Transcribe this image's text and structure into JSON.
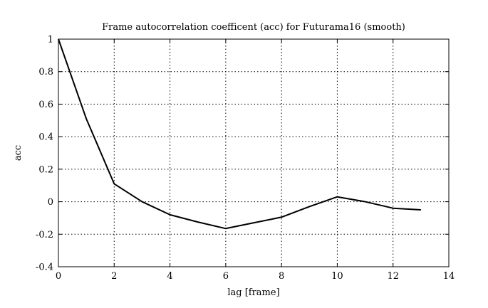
{
  "chart_data": {
    "type": "line",
    "title": "Frame autocorrelation coefficent (acc) for Futurama16 (smooth)",
    "xlabel": "lag [frame]",
    "ylabel": "acc",
    "xlim": [
      0,
      14
    ],
    "ylim": [
      -0.4,
      1
    ],
    "xticks": [
      0,
      2,
      4,
      6,
      8,
      10,
      12,
      14
    ],
    "yticks": [
      -0.4,
      -0.2,
      0,
      0.2,
      0.4,
      0.6,
      0.8,
      1
    ],
    "xtick_labels": [
      "0",
      "2",
      "4",
      "6",
      "8",
      "10",
      "12",
      "14"
    ],
    "ytick_labels": [
      "-0.4",
      "-0.2",
      "0",
      "0.2",
      "0.4",
      "0.6",
      "0.8",
      "1"
    ],
    "grid": true,
    "series": [
      {
        "x": [
          0,
          1,
          2,
          3,
          4,
          5,
          6,
          7,
          8,
          9,
          10,
          11,
          12,
          13
        ],
        "y": [
          1.0,
          0.51,
          0.11,
          0.0,
          -0.08,
          -0.125,
          -0.165,
          -0.13,
          -0.095,
          -0.03,
          0.03,
          0.0,
          -0.04,
          -0.05
        ],
        "color": "#000000"
      }
    ]
  }
}
